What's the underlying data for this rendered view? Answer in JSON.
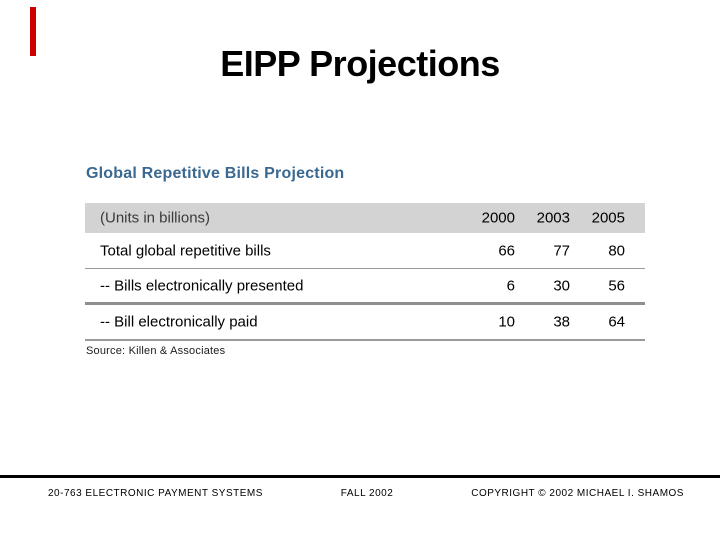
{
  "slide": {
    "title": "EIPP Projections",
    "accent_bar_color": "#cc0000"
  },
  "table": {
    "heading": "Global Repetitive Bills Projection",
    "heading_color": "#3a6890",
    "header_bg": "#d3d3d3",
    "header": {
      "label": "(Units in billions)",
      "years": [
        "2000",
        "2003",
        "2005"
      ]
    },
    "rows": [
      {
        "label": "Total global repetitive bills",
        "values": [
          "66",
          "77",
          "80"
        ]
      },
      {
        "label": "-- Bills electronically presented",
        "values": [
          "6",
          "30",
          "56"
        ]
      },
      {
        "label": "-- Bill electronically paid",
        "values": [
          "10",
          "38",
          "64"
        ]
      }
    ],
    "source": "Source: Killen & Associates"
  },
  "footer": {
    "left": "20-763 ELECTRONIC PAYMENT SYSTEMS",
    "center": "FALL 2002",
    "right": "COPYRIGHT © 2002 MICHAEL I. SHAMOS"
  },
  "chart_data": {
    "type": "table",
    "title": "Global Repetitive Bills Projection",
    "unit_note": "(Units in billions)",
    "categories": [
      "2000",
      "2003",
      "2005"
    ],
    "series": [
      {
        "name": "Total global repetitive bills",
        "values": [
          66,
          77,
          80
        ]
      },
      {
        "name": "-- Bills electronically presented",
        "values": [
          6,
          30,
          56
        ]
      },
      {
        "name": "-- Bill electronically paid",
        "values": [
          10,
          38,
          64
        ]
      }
    ],
    "source": "Source: Killen & Associates"
  }
}
